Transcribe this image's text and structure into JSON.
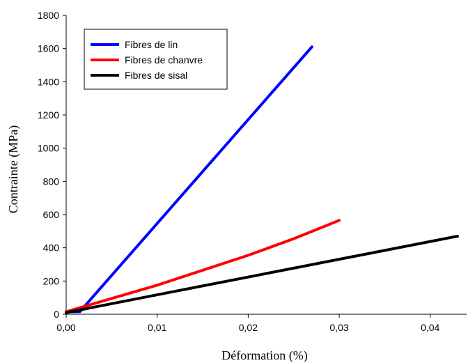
{
  "chart_data": {
    "type": "line",
    "title": "",
    "xlabel": "Déformation (%)",
    "ylabel": "Contrainte (MPa)",
    "xlim": [
      0,
      0.044
    ],
    "ylim": [
      0,
      1800
    ],
    "x_ticks": [
      0,
      0.01,
      0.02,
      0.03,
      0.04
    ],
    "x_tick_labels": [
      "0,00",
      "0,01",
      "0,02",
      "0,03",
      "0,04"
    ],
    "y_ticks": [
      0,
      200,
      400,
      600,
      800,
      1000,
      1200,
      1400,
      1600,
      1800
    ],
    "y_tick_labels": [
      "0",
      "200",
      "400",
      "600",
      "800",
      "1000",
      "1200",
      "1400",
      "1600",
      "1800"
    ],
    "grid": false,
    "legend_position": "top-left",
    "series": [
      {
        "name": "Fibres de lin",
        "color": "#0000ff",
        "x": [
          0.0,
          0.0015,
          0.027
        ],
        "y": [
          15,
          15,
          1610
        ]
      },
      {
        "name": "Fibres de chanvre",
        "color": "#ff0000",
        "x": [
          0.0,
          0.01,
          0.02,
          0.025,
          0.03
        ],
        "y": [
          15,
          175,
          355,
          455,
          565
        ]
      },
      {
        "name": "Fibres de sisal",
        "color": "#000000",
        "x": [
          0.0,
          0.043
        ],
        "y": [
          10,
          470
        ]
      }
    ]
  }
}
